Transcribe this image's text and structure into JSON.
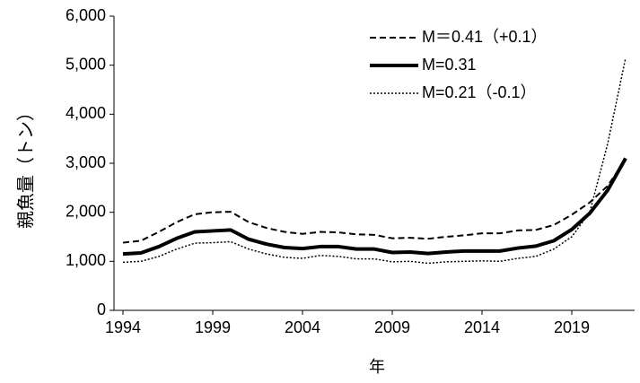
{
  "chart_data": {
    "type": "line",
    "x_label": "年",
    "y_label": "親魚量（トン）",
    "x": [
      1994,
      1995,
      1996,
      1997,
      1998,
      1999,
      2000,
      2001,
      2002,
      2003,
      2004,
      2005,
      2006,
      2007,
      2008,
      2009,
      2010,
      2011,
      2012,
      2013,
      2014,
      2015,
      2016,
      2017,
      2018,
      2019,
      2020,
      2021,
      2022
    ],
    "series": [
      {
        "name": "M＝0.41（+0.1）",
        "color": "#000000",
        "style": "dashed",
        "width": 2,
        "values": [
          1380,
          1420,
          1600,
          1800,
          1960,
          2000,
          2010,
          1800,
          1680,
          1600,
          1560,
          1600,
          1590,
          1550,
          1540,
          1470,
          1480,
          1460,
          1500,
          1530,
          1570,
          1570,
          1630,
          1640,
          1740,
          1950,
          2200,
          2540,
          3080
        ]
      },
      {
        "name": "M=0.31",
        "color": "#000000",
        "style": "solid",
        "width": 4,
        "values": [
          1150,
          1170,
          1300,
          1470,
          1600,
          1620,
          1640,
          1450,
          1350,
          1280,
          1260,
          1300,
          1300,
          1250,
          1250,
          1180,
          1190,
          1160,
          1190,
          1210,
          1210,
          1210,
          1270,
          1310,
          1420,
          1650,
          1980,
          2450,
          3100
        ]
      },
      {
        "name": "M=0.21（-0.1）",
        "color": "#000000",
        "style": "dotted",
        "width": 1.5,
        "values": [
          980,
          1000,
          1100,
          1250,
          1370,
          1380,
          1400,
          1250,
          1150,
          1080,
          1060,
          1120,
          1100,
          1050,
          1050,
          990,
          1000,
          960,
          990,
          1000,
          1010,
          1000,
          1060,
          1100,
          1250,
          1500,
          2000,
          3400,
          5150
        ]
      }
    ],
    "xlim": [
      1993.5,
      2022.5
    ],
    "xticks": [
      1994,
      1999,
      2004,
      2009,
      2014,
      2019
    ],
    "ylim": [
      0,
      6000
    ],
    "yticks": [
      0,
      {
        "value": 1000,
        "label": "1,000"
      },
      {
        "value": 2000,
        "label": "2,000"
      },
      {
        "value": 3000,
        "label": "3,000"
      },
      {
        "value": 4000,
        "label": "4,000"
      },
      {
        "value": 5000,
        "label": "5,000"
      },
      {
        "value": 6000,
        "label": "6,000"
      }
    ],
    "grid": false,
    "legend": "top-right"
  }
}
